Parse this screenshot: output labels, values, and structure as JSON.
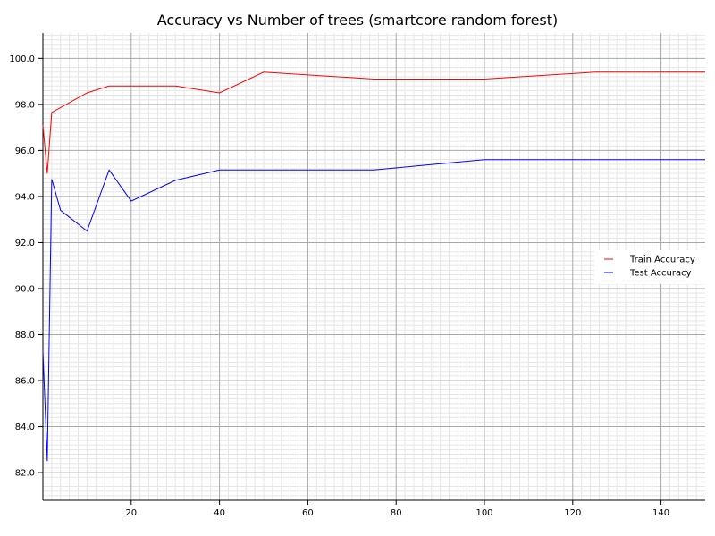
{
  "chart_data": {
    "type": "line",
    "title": "Accuracy vs Number of trees (smartcore random forest)",
    "xlabel": "",
    "ylabel": "",
    "xlim": [
      0,
      150
    ],
    "ylim": [
      80.8,
      101.1
    ],
    "x_ticks": [
      20,
      40,
      60,
      80,
      100,
      120,
      140
    ],
    "y_ticks": [
      82.0,
      84.0,
      86.0,
      88.0,
      90.0,
      92.0,
      94.0,
      96.0,
      98.0,
      100.0
    ],
    "x_tick_labels": [
      "20",
      "40",
      "60",
      "80",
      "100",
      "120",
      "140"
    ],
    "y_tick_labels": [
      "82.0",
      "84.0",
      "86.0",
      "88.0",
      "90.0",
      "92.0",
      "94.0",
      "96.0",
      "98.0",
      "100.0"
    ],
    "grid": true,
    "legend_position": "right",
    "series": [
      {
        "name": "Train Accuracy",
        "color": "#ff0000",
        "points": [
          [
            0,
            97.1
          ],
          [
            1,
            95.0
          ],
          [
            2,
            97.65
          ],
          [
            10,
            98.5
          ],
          [
            15,
            98.8
          ],
          [
            20,
            98.8
          ],
          [
            30,
            98.8
          ],
          [
            40,
            98.5
          ],
          [
            50,
            99.4
          ],
          [
            75,
            99.1
          ],
          [
            100,
            99.1
          ],
          [
            125,
            99.4
          ],
          [
            150,
            99.4
          ]
        ]
      },
      {
        "name": "Test Accuracy",
        "color": "#0000ff",
        "points": [
          [
            0,
            87.3
          ],
          [
            1,
            82.5
          ],
          [
            2,
            94.75
          ],
          [
            4,
            93.4
          ],
          [
            10,
            92.5
          ],
          [
            15,
            95.15
          ],
          [
            20,
            93.8
          ],
          [
            30,
            94.7
          ],
          [
            40,
            95.15
          ],
          [
            75,
            95.15
          ],
          [
            100,
            95.6
          ],
          [
            150,
            95.6
          ]
        ]
      }
    ]
  }
}
